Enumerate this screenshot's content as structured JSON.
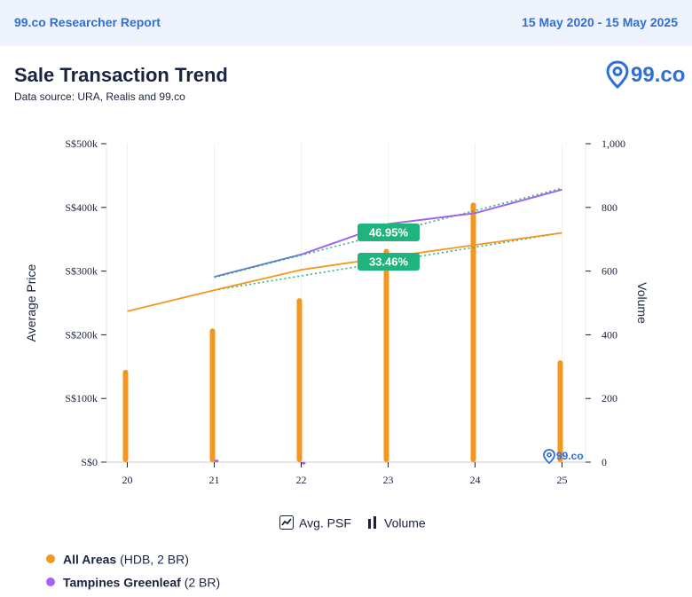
{
  "header": {
    "brand": "99.co Researcher Report",
    "date_range": "15 May 2020 - 15 May 2025"
  },
  "title": "Sale Transaction Trend",
  "subtitle": "Data source: URA, Realis and 99.co",
  "logo": {
    "text": "99.co",
    "icon": "location-pin-icon"
  },
  "watermark": {
    "text": "99.co"
  },
  "controls": {
    "avg_psf_label": "Avg. PSF",
    "volume_label": "Volume"
  },
  "legend": [
    {
      "name": "All Areas",
      "detail": "(HDB, 2 BR)",
      "color": "#f5961d"
    },
    {
      "name": "Tampines Greenleaf",
      "detail": "(2 BR)",
      "color": "#a463f2"
    }
  ],
  "colors": {
    "all_areas": "#f5961d",
    "tampines": "#a463f2",
    "tampines_line": "#5a7fc8",
    "trend": "#28b67a",
    "badge": "#1fb37e",
    "axis": "#1a2340",
    "grid": "#e6e8ee"
  },
  "chart_data": {
    "type": "line",
    "x_categories": [
      "20",
      "21",
      "22",
      "23",
      "24",
      "25"
    ],
    "y_left": {
      "label": "Average Price",
      "ticks": [
        "S$0",
        "S$100k",
        "S$200k",
        "S$300k",
        "S$400k",
        "S$500k"
      ],
      "range": [
        0,
        500000
      ]
    },
    "y_right": {
      "label": "Volume",
      "ticks": [
        "0",
        "200",
        "400",
        "600",
        "800",
        "1,000"
      ],
      "range": [
        0,
        1000
      ]
    },
    "series": [
      {
        "name": "All Areas",
        "kind": "price",
        "x": [
          20.0,
          21.0,
          22.0,
          23.0,
          24.0,
          25.0
        ],
        "values": [
          237000,
          270000,
          302000,
          322000,
          341000,
          360000
        ]
      },
      {
        "name": "Tampines Greenleaf",
        "kind": "price",
        "x": [
          21.0,
          22.0,
          23.0,
          24.0,
          25.0
        ],
        "values": [
          291000,
          326000,
          374000,
          391000,
          428000
        ]
      },
      {
        "name": "All Areas",
        "kind": "volume",
        "x": [
          20.0,
          21.0,
          22.0,
          23.0,
          24.0,
          25.0
        ],
        "values": [
          290,
          420,
          515,
          670,
          815,
          320
        ]
      },
      {
        "name": "Tampines Greenleaf",
        "kind": "volume",
        "x": [
          20.0,
          21.0,
          22.0,
          23.0,
          24.0,
          25.0
        ],
        "values": [
          0,
          8,
          1,
          0,
          0,
          0
        ]
      }
    ],
    "trendlines": [
      {
        "series": "All Areas",
        "x": [
          21.0,
          25.0
        ],
        "values": [
          270000,
          360000
        ]
      },
      {
        "series": "Tampines Greenleaf",
        "x": [
          21.0,
          25.0
        ],
        "values": [
          290000,
          430000
        ]
      }
    ],
    "badges": [
      {
        "text": "46.95%",
        "series": "Tampines Greenleaf"
      },
      {
        "text": "33.46%",
        "series": "All Areas"
      }
    ],
    "grid": true
  }
}
